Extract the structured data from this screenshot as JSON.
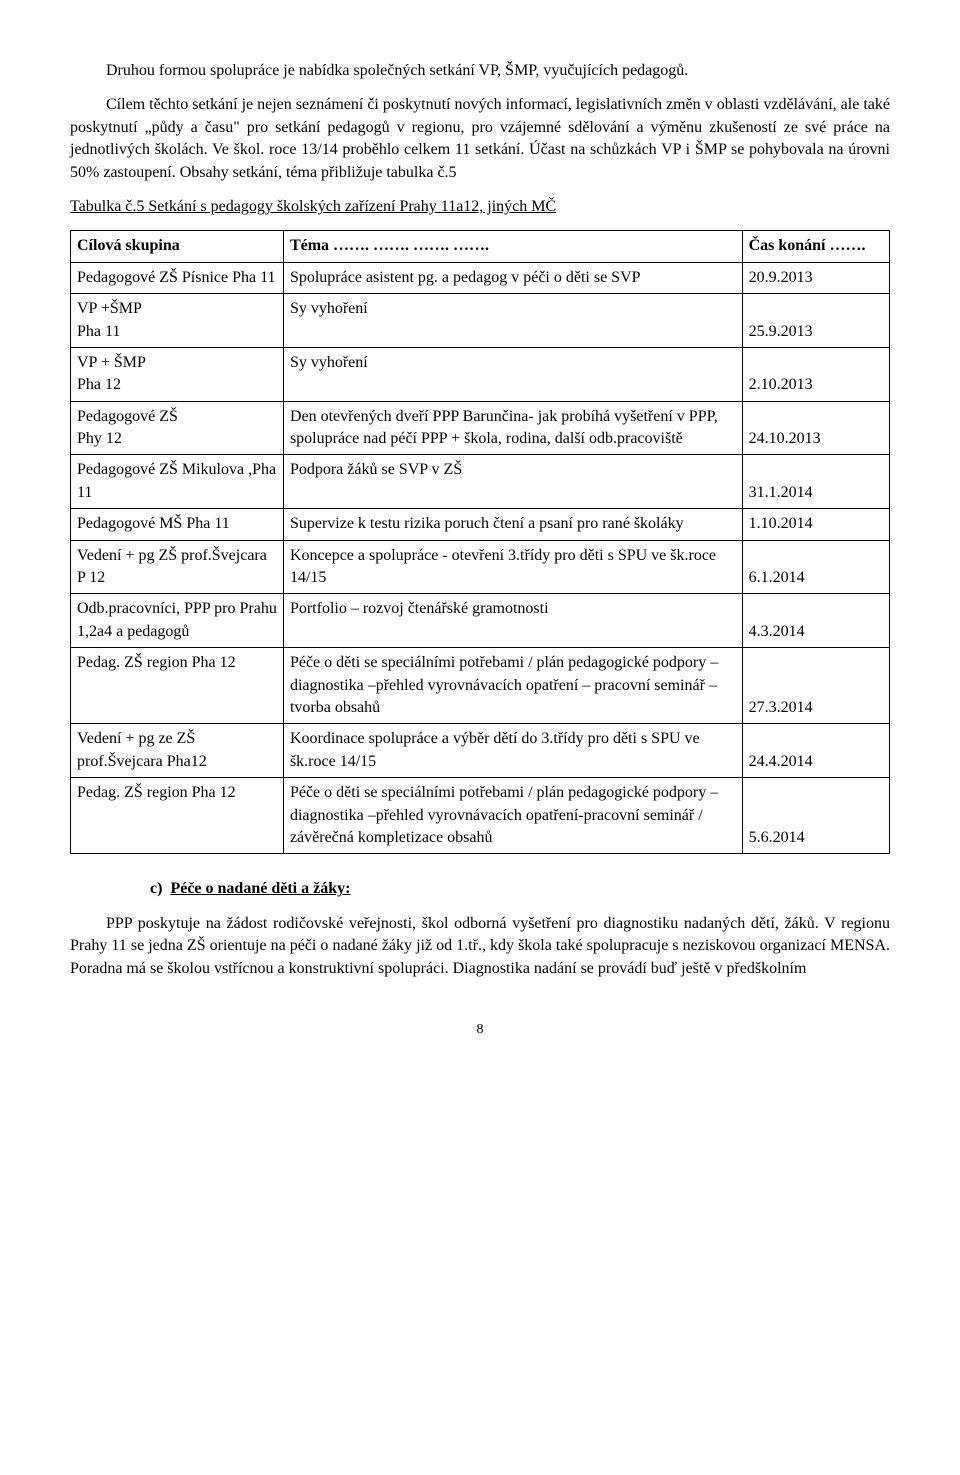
{
  "para1": "Druhou formou spolupráce je nabídka  společných  setkání  VP,    ŠMP, vyučujících pedagogů.",
  "para2": "Cílem těchto setkání je nejen seznámení či poskytnutí nových informací, legislativních změn v oblasti vzdělávání, ale také  poskytnutí „půdy a času\" pro setkání pedagogů v regionu, pro vzájemné sdělování a výměnu   zkušeností ze své práce na jednotlivých školách. Ve škol. roce 13/14 proběhlo celkem 11 setkání. Účast na schůzkách VP i ŠMP se pohybovala  na úrovni 50% zastoupení. Obsahy setkání, téma přibližuje tabulka č.5",
  "table_caption": "Tabulka č.5 Setkání s pedagogy školských zařízení Prahy 11a12, jiných MČ",
  "header": {
    "col1": "Cílová skupina",
    "col2": "Téma  …….   …….  …….  …….",
    "col3": "Čas konání …….",
    "col2_dots": "",
    "col3_dots": ""
  },
  "rows": [
    {
      "c1": "Pedagogové ZŠ Písnice Pha 11",
      "c2": "Spolupráce asistent pg. a pedagog v péči o děti se SVP",
      "c3": "20.9.2013"
    },
    {
      "c1": "VP +ŠMP\n Pha 11",
      "c2": "Sy vyhoření",
      "c3": "25.9.2013"
    },
    {
      "c1": "VP + ŠMP\nPha 12",
      "c2": "Sy vyhoření",
      "c3": "2.10.2013"
    },
    {
      "c1": "Pedagogové ZŠ\nPhy 12",
      "c2": "Den otevřených dveří  PPP Barunčina- jak probíhá vyšetření v PPP, spolupráce nad péčí  PPP + škola, rodina, další odb.pracoviště",
      "c3": "24.10.2013"
    },
    {
      "c1": "Pedagogové ZŠ Mikulova ,Pha 11",
      "c2": "Podpora žáků se SVP v ZŠ",
      "c3": "31.1.2014"
    },
    {
      "c1": "Pedagogové MŠ  Pha 11",
      "c2": "Supervize k testu rizika poruch čtení a psaní pro rané školáky",
      "c3": "1.10.2014"
    },
    {
      "c1": "Vedení + pg  ZŠ prof.Švejcara  P 12",
      "c2": "Koncepce a spolupráce - otevření 3.třídy pro děti s SPU ve šk.roce 14/15",
      "c3": "6.1.2014"
    },
    {
      "c1": "Odb.pracovníci,  PPP pro Prahu 1,2a4 a pedagogů",
      "c2": "Portfolio – rozvoj čtenářské gramotnosti",
      "c3": "4.3.2014"
    },
    {
      "c1": "Pedag. ZŠ  region Pha 12",
      "c2": "Péče o děti se speciálními potřebami / plán pedagogické podpory – diagnostika –přehled vyrovnávacích opatření – pracovní seminář – tvorba obsahů",
      "c3": "27.3.2014"
    },
    {
      "c1": "Vedení + pg ze ZŠ prof.Švejcara Pha12",
      "c2": "Koordinace  spolupráce a výběr dětí do 3.třídy pro děti s SPU ve šk.roce 14/15",
      "c3": "24.4.2014"
    },
    {
      "c1": "Pedag. ZŠ  region Pha 12",
      "c2": "Péče o děti se speciálními potřebami / plán pedagogické podpory – diagnostika –přehled vyrovnávacích opatření-pracovní seminář  / závěrečná kompletizace obsahů",
      "c3": "5.6.2014"
    }
  ],
  "section_c_label": "c)",
  "section_c_title": "Péče o nadané děti a žáky:",
  "para3": "PPP  poskytuje  na žádost rodičovské veřejnosti,  škol odborná vyšetření pro diagnostiku nadaných dětí, žáků. V regionu Prahy 11 se jedna  ZŠ orientuje na péči o nadané žáky již od 1.tř., kdy škola také spolupracuje s neziskovou organizací MENSA.  Poradna má se školou vstřícnou a konstruktivní spolupráci. Diagnostika nadání se provádí buď ještě v předškolním",
  "page_number": "8"
}
